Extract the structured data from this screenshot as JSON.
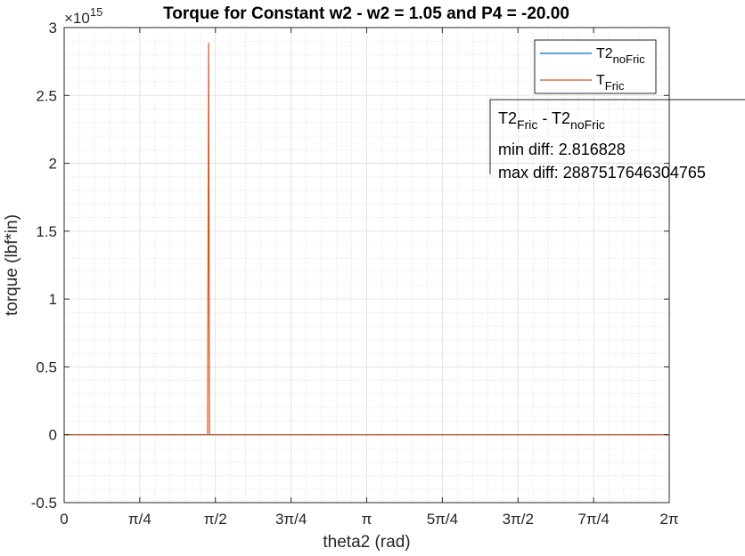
{
  "chart_data": {
    "type": "line",
    "title": "Torque for Constant w2 - w2 = 1.05 and P4 = -20.00",
    "xlabel": "theta2 (rad)",
    "ylabel": "torque (lbf*in)",
    "exponent_label": "×10",
    "exponent_power": "15",
    "xlim": [
      0,
      6.2832
    ],
    "ylim": [
      -0.5,
      3
    ],
    "xticks": [
      {
        "value": 0,
        "label": "0"
      },
      {
        "value": 0.7854,
        "label": "π/4"
      },
      {
        "value": 1.5708,
        "label": "π/2"
      },
      {
        "value": 2.3562,
        "label": "3π/4"
      },
      {
        "value": 3.1416,
        "label": "π"
      },
      {
        "value": 3.927,
        "label": "5π/4"
      },
      {
        "value": 4.7124,
        "label": "3π/2"
      },
      {
        "value": 5.4978,
        "label": "7π/4"
      },
      {
        "value": 6.2832,
        "label": "2π"
      }
    ],
    "yticks": [
      {
        "value": -0.5,
        "label": "-0.5"
      },
      {
        "value": 0,
        "label": "0"
      },
      {
        "value": 0.5,
        "label": "0.5"
      },
      {
        "value": 1,
        "label": "1"
      },
      {
        "value": 1.5,
        "label": "1.5"
      },
      {
        "value": 2,
        "label": "2"
      },
      {
        "value": 2.5,
        "label": "2.5"
      },
      {
        "value": 3,
        "label": "3"
      }
    ],
    "grid": true,
    "minor_grid": true,
    "legend_position": "top-right",
    "series": [
      {
        "name": "T2",
        "name_sub": "noFric",
        "color": "#0072BD",
        "x": [
          0,
          1.49,
          1.5,
          1.51,
          2.2,
          2.3,
          6.2832
        ],
        "y": [
          0,
          0,
          0,
          0,
          0,
          0,
          0
        ]
      },
      {
        "name": "T",
        "name_sub": "Fric",
        "color": "#D95319",
        "x": [
          0,
          1.49,
          1.5,
          1.51,
          6.2832
        ],
        "y": [
          0,
          0,
          2.887,
          0,
          0
        ]
      }
    ],
    "annotation": {
      "line1_main": "T2",
      "line1_sub1": "Fric",
      "line1_mid": " - T2",
      "line1_sub2": "noFric",
      "line2": "min diff: 2.816828",
      "line3": "max diff: 2887517646304765"
    }
  }
}
